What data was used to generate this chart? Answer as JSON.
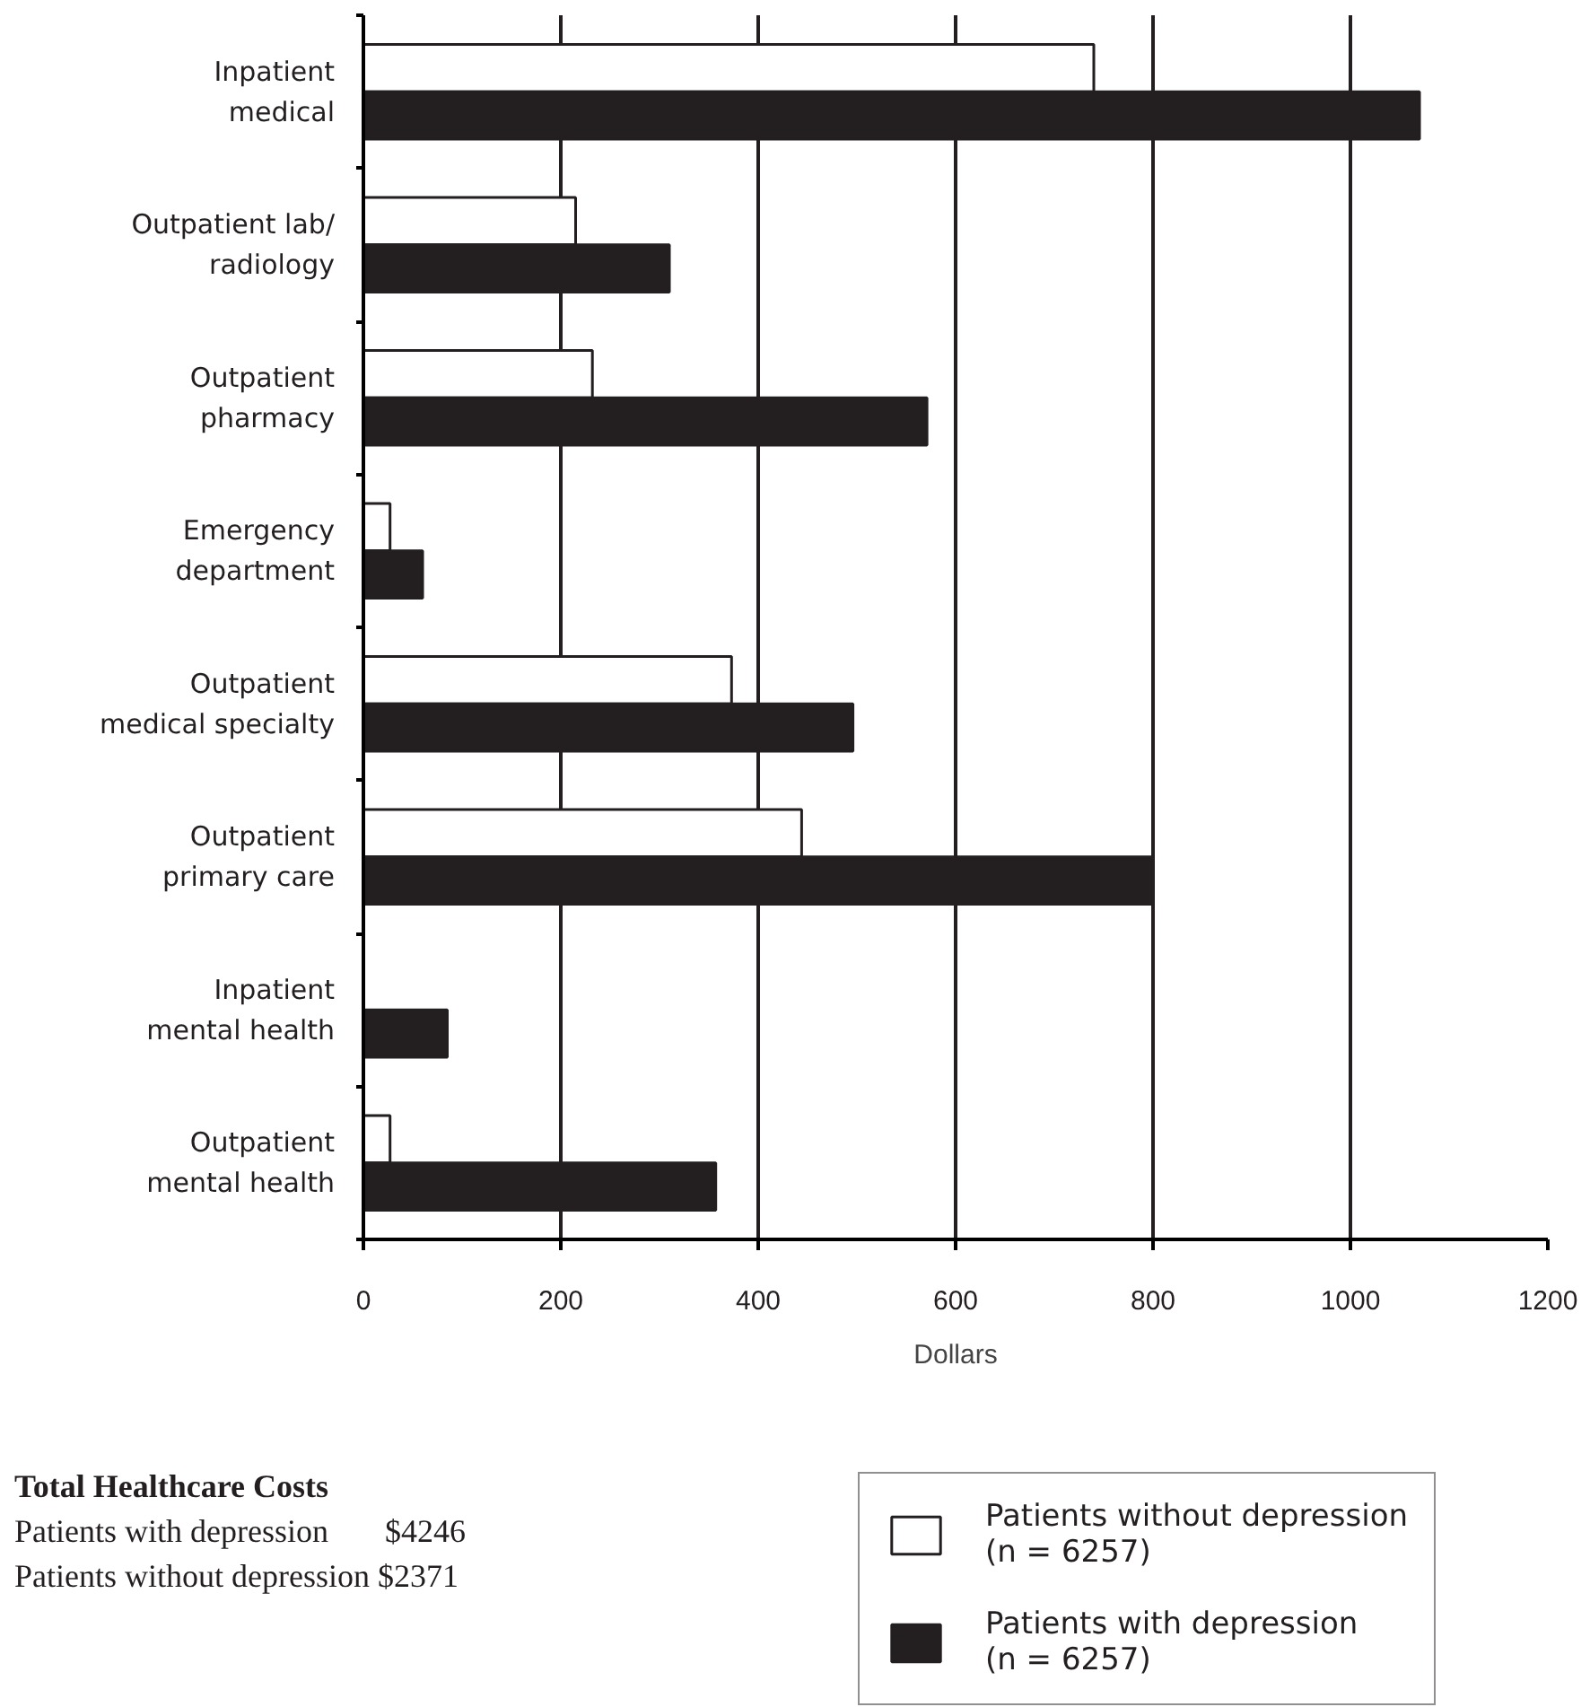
{
  "chart_data": {
    "type": "bar",
    "orientation": "horizontal",
    "categories": [
      "Inpatient\nmedical",
      "Outpatient lab/\nradiology",
      "Outpatient\npharmacy",
      "Emergency\ndepartment",
      "Outpatient\nmedical specialty",
      "Outpatient\nprimary care",
      "Inpatient\nmental health",
      "Outpatient\nmental health"
    ],
    "series": [
      {
        "name": "Patients without depression\n(n = 6257)",
        "color": "#ffffff",
        "values": [
          740,
          215,
          232,
          27,
          373,
          444,
          null,
          27
        ]
      },
      {
        "name": "Patients with depression\n(n = 6257)",
        "color": "#231f20",
        "values": [
          1070,
          310,
          571,
          60,
          496,
          800,
          85,
          357
        ]
      }
    ],
    "xlim": [
      0,
      1200
    ],
    "xticks": [
      0,
      200,
      400,
      600,
      800,
      1000,
      1200
    ],
    "xlabel": "Dollars",
    "grid": "x",
    "legend": "bottom right",
    "annotations": [
      "Total Healthcare Costs",
      "Patients with depression       $4246",
      "Patients without depression $2371"
    ]
  }
}
